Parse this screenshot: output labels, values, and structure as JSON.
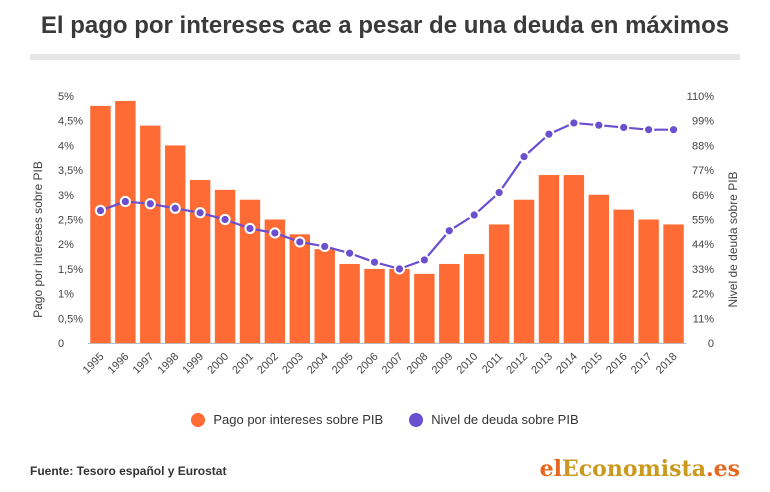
{
  "title": "El pago por intereses cae a pesar de una deuda en máximos",
  "source": "Fuente: Tesoro español y Eurostat",
  "brand": {
    "part1": "el",
    "part2": "Economista",
    "part3": ".es"
  },
  "colors": {
    "bars": "#ff6b35",
    "line": "#6a4fcf"
  },
  "chart_data": {
    "type": "bar",
    "categories": [
      "1995",
      "1996",
      "1997",
      "1998",
      "1999",
      "2000",
      "2001",
      "2002",
      "2003",
      "2004",
      "2005",
      "2006",
      "2007",
      "2008",
      "2009",
      "2010",
      "2011",
      "2012",
      "2013",
      "2014",
      "2015",
      "2016",
      "2017",
      "2018"
    ],
    "ylabel_left": "Pago por intereses sobre PIB",
    "ylabel_right": "Nivel de deuda sobre PIB",
    "ylim_left": [
      0,
      5
    ],
    "ylim_right": [
      0,
      110
    ],
    "yticks_left": [
      "0",
      "0,5%",
      "1%",
      "1,5%",
      "2%",
      "2,5%",
      "3%",
      "3,5%",
      "4%",
      "4,5%",
      "5%"
    ],
    "yticks_right": [
      "0",
      "11%",
      "22%",
      "33%",
      "44%",
      "55%",
      "66%",
      "77%",
      "88%",
      "99%",
      "110%"
    ],
    "series": [
      {
        "name": "Pago por intereses sobre PIB",
        "type": "bar",
        "axis": "left",
        "values": [
          4.8,
          4.9,
          4.4,
          4.0,
          3.3,
          3.1,
          2.9,
          2.5,
          2.2,
          1.9,
          1.6,
          1.5,
          1.5,
          1.4,
          1.6,
          1.8,
          2.4,
          2.9,
          3.4,
          3.4,
          3.0,
          2.7,
          2.5,
          2.4
        ]
      },
      {
        "name": "Nivel de deuda sobre PIB",
        "type": "line",
        "axis": "right",
        "values": [
          59,
          63,
          62,
          60,
          58,
          55,
          51,
          49,
          45,
          43,
          40,
          36,
          33,
          37,
          50,
          57,
          67,
          83,
          93,
          98,
          97,
          96,
          95,
          95
        ]
      }
    ],
    "legend": "bottom"
  }
}
